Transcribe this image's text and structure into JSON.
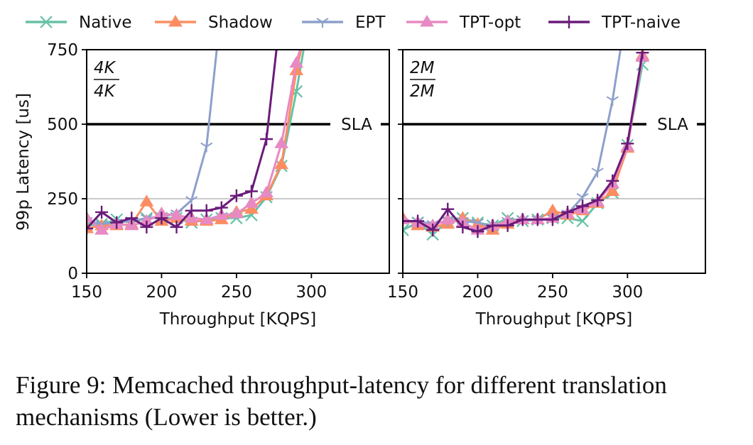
{
  "legend": [
    {
      "name": "Native",
      "color": "#66c2a5",
      "marker": "x"
    },
    {
      "name": "Shadow",
      "color": "#fc8d62",
      "marker": "triangle"
    },
    {
      "name": "EPT",
      "color": "#8da0cb",
      "marker": "tri-down"
    },
    {
      "name": "TPT-opt",
      "color": "#e78ac3",
      "marker": "triangle"
    },
    {
      "name": "TPT-naive",
      "color": "#6a1b7a",
      "marker": "plus"
    }
  ],
  "caption": "Figure 9: Memcached throughput-latency for different translation mechanisms (Lower is better.)",
  "chart_data": [
    {
      "type": "line",
      "panel_label": {
        "num": "4K",
        "den": "4K"
      },
      "xlabel": "Throughput [KQPS]",
      "ylabel": "99p Latency [us]",
      "xlim": [
        150,
        352
      ],
      "ylim": [
        0,
        750
      ],
      "xticks": [
        150,
        200,
        250,
        300
      ],
      "yticks": [
        0,
        250,
        500,
        750
      ],
      "hlines": [
        {
          "y": 500,
          "label": "SLA",
          "style": "black-thick"
        },
        {
          "y": 250,
          "label": "",
          "style": "gray-thin"
        }
      ],
      "series": [
        {
          "name": "Native",
          "x": [
            150,
            160,
            170,
            180,
            190,
            200,
            210,
            220,
            230,
            240,
            250,
            260,
            270,
            280,
            290,
            300
          ],
          "y": [
            160,
            165,
            180,
            170,
            185,
            185,
            185,
            170,
            180,
            185,
            185,
            195,
            255,
            360,
            610,
            900
          ]
        },
        {
          "name": "Shadow",
          "x": [
            150,
            160,
            170,
            180,
            190,
            200,
            210,
            220,
            230,
            240,
            250,
            260,
            270,
            280,
            290,
            300
          ],
          "y": [
            150,
            160,
            160,
            165,
            240,
            175,
            185,
            175,
            175,
            180,
            205,
            215,
            260,
            365,
            680,
            900
          ]
        },
        {
          "name": "EPT",
          "x": [
            150,
            160,
            170,
            180,
            190,
            200,
            210,
            220,
            230,
            240
          ],
          "y": [
            175,
            165,
            170,
            175,
            185,
            190,
            200,
            245,
            425,
            900
          ]
        },
        {
          "name": "TPT-opt",
          "x": [
            150,
            160,
            170,
            180,
            190,
            200,
            210,
            220,
            230,
            240,
            250,
            260,
            270,
            280,
            290,
            300
          ],
          "y": [
            185,
            145,
            165,
            160,
            175,
            200,
            195,
            185,
            180,
            195,
            200,
            235,
            270,
            435,
            705,
            900
          ]
        },
        {
          "name": "TPT-naive",
          "x": [
            150,
            160,
            170,
            180,
            190,
            200,
            210,
            220,
            230,
            240,
            250,
            260,
            270,
            280
          ],
          "y": [
            150,
            205,
            170,
            185,
            155,
            185,
            155,
            210,
            210,
            220,
            260,
            275,
            450,
            900
          ]
        }
      ]
    },
    {
      "type": "line",
      "panel_label": {
        "num": "2M",
        "den": "2M"
      },
      "xlabel": "Throughput [KQPS]",
      "ylabel": "",
      "xlim": [
        150,
        352
      ],
      "ylim": [
        0,
        750
      ],
      "xticks": [
        150,
        200,
        250,
        300
      ],
      "yticks": [
        0,
        250,
        500,
        750
      ],
      "hlines": [
        {
          "y": 500,
          "label": "SLA",
          "style": "black-thick"
        },
        {
          "y": 250,
          "label": "",
          "style": "gray-thin"
        }
      ],
      "series": [
        {
          "name": "Native",
          "x": [
            150,
            160,
            170,
            180,
            190,
            200,
            210,
            220,
            230,
            240,
            250,
            260,
            270,
            280,
            290,
            300,
            310
          ],
          "y": [
            145,
            170,
            130,
            175,
            185,
            170,
            160,
            185,
            175,
            180,
            185,
            185,
            175,
            235,
            270,
            430,
            700
          ]
        },
        {
          "name": "Shadow",
          "x": [
            150,
            160,
            170,
            180,
            190,
            200,
            210,
            220,
            230,
            240,
            250,
            260,
            270,
            280,
            290,
            300,
            310
          ],
          "y": [
            185,
            160,
            155,
            165,
            185,
            165,
            145,
            165,
            180,
            180,
            210,
            195,
            210,
            235,
            275,
            420,
            730
          ]
        },
        {
          "name": "EPT",
          "x": [
            150,
            160,
            170,
            180,
            190,
            200,
            210,
            220,
            230,
            240,
            250,
            260,
            270,
            280,
            290,
            300
          ],
          "y": [
            170,
            175,
            165,
            175,
            175,
            170,
            155,
            175,
            180,
            180,
            185,
            200,
            255,
            340,
            580,
            900
          ]
        },
        {
          "name": "TPT-opt",
          "x": [
            150,
            160,
            170,
            180,
            190,
            200,
            210,
            220,
            230,
            240,
            250,
            260,
            270,
            280,
            290,
            300,
            310
          ],
          "y": [
            180,
            170,
            160,
            180,
            170,
            145,
            160,
            175,
            180,
            180,
            185,
            200,
            215,
            240,
            300,
            425,
            725
          ]
        },
        {
          "name": "TPT-naive",
          "x": [
            150,
            160,
            170,
            180,
            190,
            200,
            210,
            220,
            230,
            240,
            250,
            260,
            270,
            280,
            290,
            300,
            310
          ],
          "y": [
            175,
            175,
            145,
            215,
            155,
            140,
            160,
            160,
            180,
            180,
            180,
            205,
            225,
            245,
            310,
            435,
            740
          ]
        }
      ]
    }
  ]
}
